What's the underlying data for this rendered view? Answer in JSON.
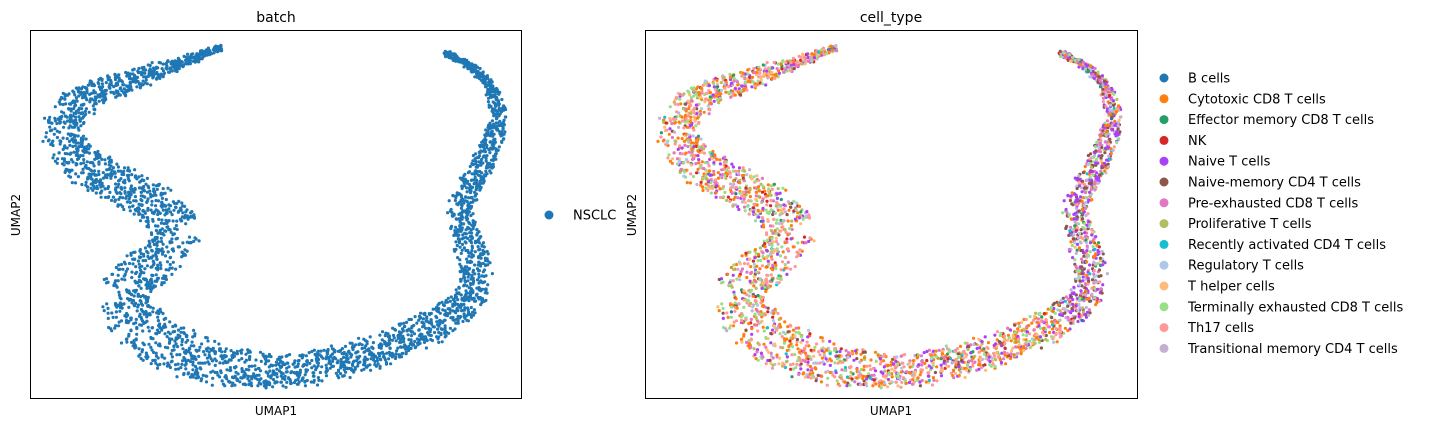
{
  "chart_data": [
    {
      "type": "scatter",
      "title": "batch",
      "xlabel": "UMAP1",
      "ylabel": "UMAP2",
      "xticks": "none",
      "yticks": "none",
      "grid": false,
      "legend_position": "right",
      "color_by": "batch",
      "series": [
        {
          "name": "NSCLC",
          "color": "#1f77b4"
        }
      ]
    },
    {
      "type": "scatter",
      "title": "cell_type",
      "xlabel": "UMAP1",
      "ylabel": "UMAP2",
      "xticks": "none",
      "yticks": "none",
      "grid": false,
      "legend_position": "right",
      "color_by": "cell_type",
      "series": [
        {
          "name": "B cells",
          "color": "#1f77b4"
        },
        {
          "name": "Cytotoxic CD8 T cells",
          "color": "#ff7f0e"
        },
        {
          "name": "Effector memory CD8 T cells",
          "color": "#279e68"
        },
        {
          "name": "NK",
          "color": "#d62728"
        },
        {
          "name": "Naive T cells",
          "color": "#aa40fc"
        },
        {
          "name": "Naive-memory CD4 T cells",
          "color": "#8c564b"
        },
        {
          "name": "Pre-exhausted CD8 T cells",
          "color": "#e377c2"
        },
        {
          "name": "Proliferative T cells",
          "color": "#b5bd61"
        },
        {
          "name": "Recently activated CD4 T cells",
          "color": "#17becf"
        },
        {
          "name": "Regulatory T cells",
          "color": "#aec7e8"
        },
        {
          "name": "T helper cells",
          "color": "#ffbb78"
        },
        {
          "name": "Terminally exhausted CD8 T cells",
          "color": "#98df8a"
        },
        {
          "name": "Th17 cells",
          "color": "#ff9896"
        },
        {
          "name": "Transitional memory CD4 T cells",
          "color": "#c5b0d5"
        }
      ]
    }
  ]
}
